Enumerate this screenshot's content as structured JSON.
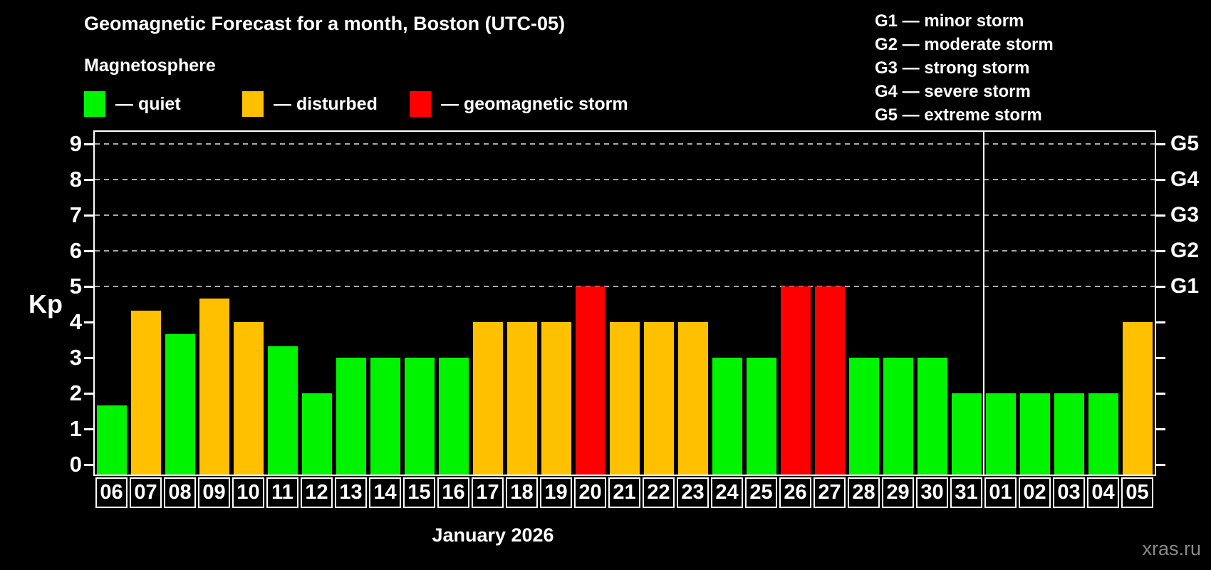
{
  "header": {
    "title": "Geomagnetic Forecast for a month, Boston (UTC-05)",
    "subtitle": "Magnetosphere"
  },
  "legend": {
    "items": [
      {
        "key": "quiet",
        "label": "— quiet",
        "color": "#00f400"
      },
      {
        "key": "disturbed",
        "label": "— disturbed",
        "color": "#ffc000"
      },
      {
        "key": "storm",
        "label": "— geomagnetic storm",
        "color": "#ff0000"
      }
    ]
  },
  "g_scale_legend": {
    "lines": [
      "G1 — minor storm",
      "G2 — moderate storm",
      "G3 — strong storm",
      "G4 — severe storm",
      "G5 — extreme storm"
    ]
  },
  "watermark": "xras.ru",
  "chart_data": {
    "type": "bar",
    "title": "Geomagnetic Forecast for a month, Boston (UTC-05)",
    "xlabel": "January 2026",
    "ylabel": "Kp",
    "ylim": [
      0,
      9.4
    ],
    "grid": "dashed horizontal at Kp 5-9 only",
    "legend_position": "top-left",
    "yticks": [
      0,
      1,
      2,
      3,
      4,
      5,
      6,
      7,
      8,
      9
    ],
    "gridlines_at": [
      5,
      6,
      7,
      8,
      9
    ],
    "right_axis_labels": [
      {
        "value": 5,
        "label": "G1"
      },
      {
        "value": 6,
        "label": "G2"
      },
      {
        "value": 7,
        "label": "G3"
      },
      {
        "value": 8,
        "label": "G4"
      },
      {
        "value": 9,
        "label": "G5"
      }
    ],
    "categories": [
      "06",
      "07",
      "08",
      "09",
      "10",
      "11",
      "12",
      "13",
      "14",
      "15",
      "16",
      "17",
      "18",
      "19",
      "20",
      "21",
      "22",
      "23",
      "24",
      "25",
      "26",
      "27",
      "28",
      "29",
      "30",
      "31",
      "01",
      "02",
      "03",
      "04",
      "05"
    ],
    "values": [
      1.67,
      4.33,
      3.67,
      4.67,
      4,
      3.33,
      2,
      3,
      3,
      3,
      3,
      4,
      4,
      4,
      5,
      4,
      4,
      4,
      3,
      3,
      5,
      5,
      3,
      3,
      3,
      2,
      2,
      2,
      2,
      2,
      4
    ],
    "statuses": [
      "quiet",
      "disturbed",
      "quiet",
      "disturbed",
      "disturbed",
      "quiet",
      "quiet",
      "quiet",
      "quiet",
      "quiet",
      "quiet",
      "disturbed",
      "disturbed",
      "disturbed",
      "storm",
      "disturbed",
      "disturbed",
      "disturbed",
      "quiet",
      "quiet",
      "storm",
      "storm",
      "quiet",
      "quiet",
      "quiet",
      "quiet",
      "quiet",
      "quiet",
      "quiet",
      "quiet",
      "disturbed"
    ],
    "month_separator_after_index": 25
  }
}
